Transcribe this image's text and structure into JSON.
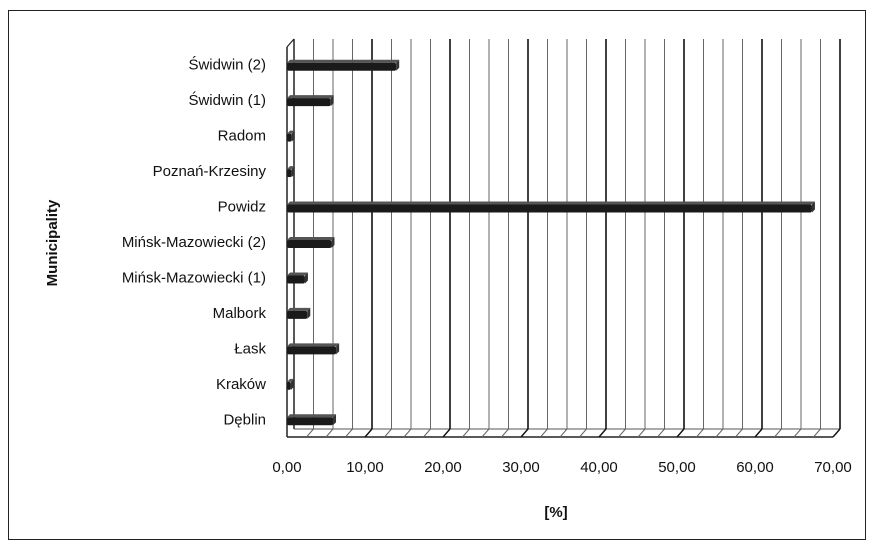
{
  "chart_data": {
    "type": "bar",
    "orientation": "horizontal",
    "title": "",
    "xlabel": "[%]",
    "ylabel": "Municipality",
    "xlim": [
      0,
      70
    ],
    "x_ticks": [
      "0,00",
      "10,00",
      "20,00",
      "30,00",
      "40,00",
      "50,00",
      "60,00",
      "70,00"
    ],
    "grid": true,
    "categories": [
      "Świdwin (2)",
      "Świdwin (1)",
      "Radom",
      "Poznań-Krzesiny",
      "Powidz",
      "Mińsk-Mazowiecki (2)",
      "Mińsk-Mazowiecki (1)",
      "Malbork",
      "Łask",
      "Kraków",
      "Dęblin"
    ],
    "values": [
      14.0,
      5.6,
      0.6,
      0.6,
      67.3,
      5.7,
      2.3,
      2.6,
      6.3,
      0.5,
      5.9
    ],
    "bar_color": "#1a1a1a"
  }
}
